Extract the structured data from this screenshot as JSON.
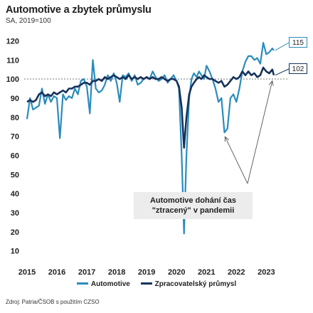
{
  "title": "Automotive a zbytek průmyslu",
  "subtitle": "SA, 2019=100",
  "source": "Zdroj: Patria/ČSOB s použitím CZSO",
  "annotation": {
    "line1": "Automotive dohání čas",
    "line2": "\"ztracený\" v pandemii"
  },
  "end_labels": {
    "automotive": "115",
    "manufacturing": "102"
  },
  "colors": {
    "automotive": "#2a8bbd",
    "manufacturing": "#16325c",
    "annotation_bg": "#ececec",
    "arrow": "#555555"
  },
  "chart_data": {
    "type": "line",
    "title": "Automotive a zbytek průmyslu",
    "subtitle": "SA, 2019=100",
    "xlabel": "",
    "ylabel": "",
    "ylim": [
      5,
      125
    ],
    "xlim": [
      2015.0,
      2023.42
    ],
    "yticks": [
      10,
      20,
      30,
      40,
      50,
      60,
      70,
      80,
      90,
      100,
      110,
      120
    ],
    "xticks": [
      "2015",
      "2016",
      "2017",
      "2018",
      "2019",
      "2020",
      "2021",
      "2022",
      "2023"
    ],
    "reference_line": 100,
    "grid": false,
    "legend_position": "bottom",
    "series": [
      {
        "name": "Automotive",
        "color": "#2a8bbd",
        "points": [
          [
            2015.0,
            79
          ],
          [
            2015.1,
            90
          ],
          [
            2015.2,
            84
          ],
          [
            2015.3,
            85
          ],
          [
            2015.4,
            86
          ],
          [
            2015.5,
            95
          ],
          [
            2015.6,
            87
          ],
          [
            2015.7,
            92
          ],
          [
            2015.8,
            88
          ],
          [
            2015.9,
            91
          ],
          [
            2016.0,
            90
          ],
          [
            2016.1,
            69
          ],
          [
            2016.2,
            92
          ],
          [
            2016.3,
            89
          ],
          [
            2016.4,
            91
          ],
          [
            2016.5,
            90
          ],
          [
            2016.6,
            95
          ],
          [
            2016.7,
            92
          ],
          [
            2016.8,
            99
          ],
          [
            2016.9,
            100
          ],
          [
            2017.0,
            96
          ],
          [
            2017.1,
            82
          ],
          [
            2017.2,
            110
          ],
          [
            2017.3,
            95
          ],
          [
            2017.4,
            93
          ],
          [
            2017.5,
            94
          ],
          [
            2017.6,
            97
          ],
          [
            2017.7,
            102
          ],
          [
            2017.8,
            99
          ],
          [
            2017.9,
            103
          ],
          [
            2018.0,
            98
          ],
          [
            2018.1,
            88
          ],
          [
            2018.2,
            102
          ],
          [
            2018.3,
            101
          ],
          [
            2018.4,
            103
          ],
          [
            2018.5,
            99
          ],
          [
            2018.6,
            102
          ],
          [
            2018.7,
            97
          ],
          [
            2018.8,
            98
          ],
          [
            2018.9,
            100
          ],
          [
            2019.0,
            101
          ],
          [
            2019.1,
            100
          ],
          [
            2019.2,
            104
          ],
          [
            2019.3,
            101
          ],
          [
            2019.4,
            99
          ],
          [
            2019.5,
            100
          ],
          [
            2019.6,
            102
          ],
          [
            2019.7,
            98
          ],
          [
            2019.8,
            100
          ],
          [
            2019.9,
            102
          ],
          [
            2020.0,
            99
          ],
          [
            2020.08,
            95
          ],
          [
            2020.17,
            60
          ],
          [
            2020.25,
            19
          ],
          [
            2020.33,
            60
          ],
          [
            2020.42,
            90
          ],
          [
            2020.5,
            100
          ],
          [
            2020.58,
            103
          ],
          [
            2020.67,
            101
          ],
          [
            2020.75,
            104
          ],
          [
            2020.83,
            102
          ],
          [
            2020.92,
            100
          ],
          [
            2021.0,
            107
          ],
          [
            2021.1,
            104
          ],
          [
            2021.2,
            100
          ],
          [
            2021.3,
            95
          ],
          [
            2021.4,
            88
          ],
          [
            2021.5,
            90
          ],
          [
            2021.6,
            72
          ],
          [
            2021.7,
            74
          ],
          [
            2021.8,
            90
          ],
          [
            2021.9,
            92
          ],
          [
            2022.0,
            88
          ],
          [
            2022.1,
            95
          ],
          [
            2022.2,
            104
          ],
          [
            2022.3,
            109
          ],
          [
            2022.4,
            112
          ],
          [
            2022.5,
            112
          ],
          [
            2022.6,
            110
          ],
          [
            2022.7,
            111
          ],
          [
            2022.8,
            108
          ],
          [
            2022.9,
            119
          ],
          [
            2023.0,
            113
          ],
          [
            2023.1,
            114
          ],
          [
            2023.2,
            116
          ],
          [
            2023.25,
            115
          ]
        ]
      },
      {
        "name": "Zpracovatelský průmysl",
        "color": "#16325c",
        "points": [
          [
            2015.0,
            88
          ],
          [
            2015.1,
            89
          ],
          [
            2015.2,
            88
          ],
          [
            2015.3,
            89
          ],
          [
            2015.4,
            92
          ],
          [
            2015.5,
            93
          ],
          [
            2015.6,
            91
          ],
          [
            2015.7,
            92
          ],
          [
            2015.8,
            91
          ],
          [
            2015.9,
            93
          ],
          [
            2016.0,
            92
          ],
          [
            2016.1,
            93
          ],
          [
            2016.2,
            94
          ],
          [
            2016.3,
            93
          ],
          [
            2016.4,
            95
          ],
          [
            2016.5,
            95
          ],
          [
            2016.6,
            96
          ],
          [
            2016.7,
            96
          ],
          [
            2016.8,
            97
          ],
          [
            2016.9,
            98
          ],
          [
            2017.0,
            98
          ],
          [
            2017.1,
            97
          ],
          [
            2017.2,
            99
          ],
          [
            2017.3,
            99
          ],
          [
            2017.4,
            100
          ],
          [
            2017.5,
            99
          ],
          [
            2017.6,
            101
          ],
          [
            2017.7,
            100
          ],
          [
            2017.8,
            101
          ],
          [
            2017.9,
            102
          ],
          [
            2018.0,
            101
          ],
          [
            2018.1,
            100
          ],
          [
            2018.2,
            101
          ],
          [
            2018.3,
            100
          ],
          [
            2018.4,
            102
          ],
          [
            2018.5,
            100
          ],
          [
            2018.6,
            101
          ],
          [
            2018.7,
            100
          ],
          [
            2018.8,
            101
          ],
          [
            2018.9,
            100
          ],
          [
            2019.0,
            101
          ],
          [
            2019.1,
            100
          ],
          [
            2019.2,
            101
          ],
          [
            2019.3,
            100
          ],
          [
            2019.4,
            100
          ],
          [
            2019.5,
            101
          ],
          [
            2019.6,
            100
          ],
          [
            2019.7,
            99
          ],
          [
            2019.8,
            100
          ],
          [
            2019.9,
            100
          ],
          [
            2020.0,
            99
          ],
          [
            2020.08,
            96
          ],
          [
            2020.17,
            85
          ],
          [
            2020.25,
            64
          ],
          [
            2020.33,
            80
          ],
          [
            2020.42,
            92
          ],
          [
            2020.5,
            96
          ],
          [
            2020.58,
            98
          ],
          [
            2020.67,
            100
          ],
          [
            2020.75,
            101
          ],
          [
            2020.83,
            100
          ],
          [
            2020.92,
            102
          ],
          [
            2021.0,
            101
          ],
          [
            2021.1,
            100
          ],
          [
            2021.2,
            100
          ],
          [
            2021.3,
            99
          ],
          [
            2021.4,
            98
          ],
          [
            2021.5,
            99
          ],
          [
            2021.6,
            96
          ],
          [
            2021.7,
            97
          ],
          [
            2021.8,
            99
          ],
          [
            2021.9,
            101
          ],
          [
            2022.0,
            100
          ],
          [
            2022.1,
            101
          ],
          [
            2022.2,
            104
          ],
          [
            2022.3,
            102
          ],
          [
            2022.4,
            104
          ],
          [
            2022.5,
            102
          ],
          [
            2022.6,
            103
          ],
          [
            2022.7,
            101
          ],
          [
            2022.8,
            102
          ],
          [
            2022.9,
            106
          ],
          [
            2023.0,
            104
          ],
          [
            2023.1,
            103
          ],
          [
            2023.2,
            105
          ],
          [
            2023.25,
            102
          ]
        ]
      }
    ]
  }
}
